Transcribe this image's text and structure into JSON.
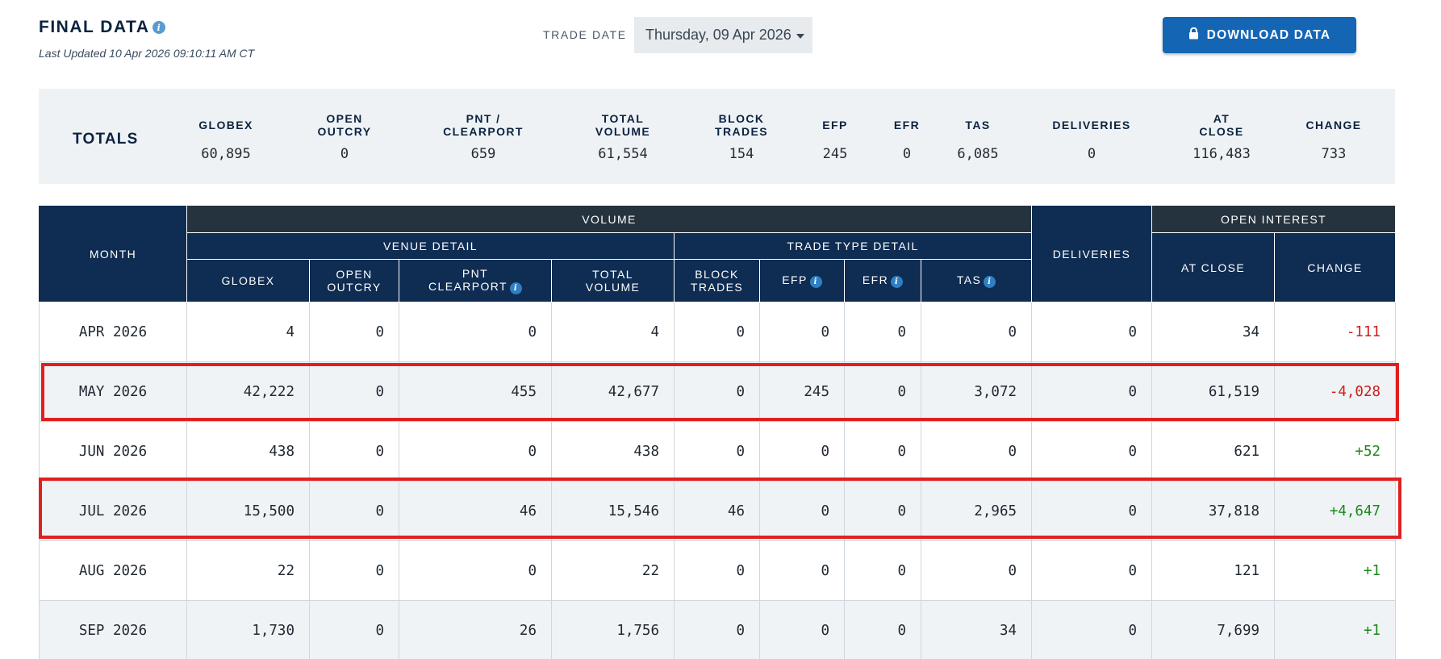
{
  "header": {
    "title": "FINAL DATA",
    "last_updated": "Last Updated 10 Apr 2026 09:10:11 AM CT",
    "trade_date_label": "TRADE DATE",
    "trade_date_value": "Thursday, 09 Apr 2026",
    "download_label": "DOWNLOAD DATA"
  },
  "totals": {
    "label": "TOTALS",
    "columns": [
      {
        "h1": "GLOBEX",
        "h2": "",
        "value": "60,895"
      },
      {
        "h1": "OPEN",
        "h2": "OUTCRY",
        "value": "0"
      },
      {
        "h1": "PNT /",
        "h2": "CLEARPORT",
        "value": "659"
      },
      {
        "h1": "TOTAL",
        "h2": "VOLUME",
        "value": "61,554"
      },
      {
        "h1": "BLOCK",
        "h2": "TRADES",
        "value": "154"
      },
      {
        "h1": "EFP",
        "h2": "",
        "value": "245"
      },
      {
        "h1": "EFR",
        "h2": "",
        "value": "0"
      },
      {
        "h1": "TAS",
        "h2": "",
        "value": "6,085"
      },
      {
        "h1": "DELIVERIES",
        "h2": "",
        "value": "0"
      },
      {
        "h1": "AT",
        "h2": "CLOSE",
        "value": "116,483"
      },
      {
        "h1": "CHANGE",
        "h2": "",
        "value": "733"
      }
    ]
  },
  "table": {
    "group_volume": "VOLUME",
    "group_open_interest": "OPEN INTEREST",
    "group_venue": "VENUE DETAIL",
    "group_trade_type": "TRADE TYPE DETAIL",
    "col_month": "MONTH",
    "col_deliveries": "DELIVERIES",
    "col_globex": "GLOBEX",
    "col_open_outcry_1": "OPEN",
    "col_open_outcry_2": "OUTCRY",
    "col_pnt_1": "PNT",
    "col_pnt_2": "CLEARPORT",
    "col_total_1": "TOTAL",
    "col_total_2": "VOLUME",
    "col_block_1": "BLOCK",
    "col_block_2": "TRADES",
    "col_efp": "EFP",
    "col_efr": "EFR",
    "col_tas": "TAS",
    "col_at_close": "AT CLOSE",
    "col_change": "CHANGE",
    "rows": [
      {
        "month": "APR 2026",
        "globex": "4",
        "open_outcry": "0",
        "pnt": "0",
        "total": "4",
        "block": "0",
        "efp": "0",
        "efr": "0",
        "tas": "0",
        "deliveries": "0",
        "at_close": "34",
        "change": "-111"
      },
      {
        "month": "MAY 2026",
        "globex": "42,222",
        "open_outcry": "0",
        "pnt": "455",
        "total": "42,677",
        "block": "0",
        "efp": "245",
        "efr": "0",
        "tas": "3,072",
        "deliveries": "0",
        "at_close": "61,519",
        "change": "-4,028"
      },
      {
        "month": "JUN 2026",
        "globex": "438",
        "open_outcry": "0",
        "pnt": "0",
        "total": "438",
        "block": "0",
        "efp": "0",
        "efr": "0",
        "tas": "0",
        "deliveries": "0",
        "at_close": "621",
        "change": "+52"
      },
      {
        "month": "JUL 2026",
        "globex": "15,500",
        "open_outcry": "0",
        "pnt": "46",
        "total": "15,546",
        "block": "46",
        "efp": "0",
        "efr": "0",
        "tas": "2,965",
        "deliveries": "0",
        "at_close": "37,818",
        "change": "+4,647"
      },
      {
        "month": "AUG 2026",
        "globex": "22",
        "open_outcry": "0",
        "pnt": "0",
        "total": "22",
        "block": "0",
        "efp": "0",
        "efr": "0",
        "tas": "0",
        "deliveries": "0",
        "at_close": "121",
        "change": "+1"
      },
      {
        "month": "SEP 2026",
        "globex": "1,730",
        "open_outcry": "0",
        "pnt": "26",
        "total": "1,756",
        "block": "0",
        "efp": "0",
        "efr": "0",
        "tas": "34",
        "deliveries": "0",
        "at_close": "7,699",
        "change": "+1"
      }
    ]
  },
  "colors": {
    "header_navy": "#0f2c52",
    "header_dark": "#25333f",
    "button_blue": "#1466b5",
    "negative_red": "#d11b1b",
    "positive_green": "#1a8a1a",
    "highlight_red": "#e02020"
  },
  "icons": [
    "info-icon",
    "lock-icon",
    "caret-down-icon"
  ]
}
